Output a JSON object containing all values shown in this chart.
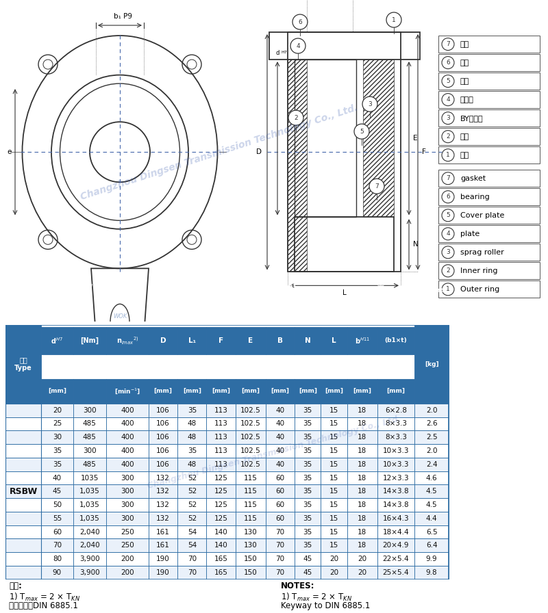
{
  "header_bg": "#2E6DA4",
  "header_text_color": "#FFFFFF",
  "row_bg_even": "#EAF1FA",
  "row_bg_odd": "#FFFFFF",
  "border_color": "#2E6DA4",
  "rows": [
    [
      "20",
      "300",
      "400",
      "106",
      "35",
      "113",
      "102.5",
      "40",
      "35",
      "15",
      "18",
      "6×2.8",
      "2.0"
    ],
    [
      "25",
      "485",
      "400",
      "106",
      "48",
      "113",
      "102.5",
      "40",
      "35",
      "15",
      "18",
      "8×3.3",
      "2.6"
    ],
    [
      "30",
      "485",
      "400",
      "106",
      "48",
      "113",
      "102.5",
      "40",
      "35",
      "15",
      "18",
      "8×3.3",
      "2.5"
    ],
    [
      "35",
      "300",
      "400",
      "106",
      "35",
      "113",
      "102.5",
      "40",
      "35",
      "15",
      "18",
      "10×3.3",
      "2.0"
    ],
    [
      "35",
      "485",
      "400",
      "106",
      "48",
      "113",
      "102.5",
      "40",
      "35",
      "15",
      "18",
      "10×3.3",
      "2.4"
    ],
    [
      "40",
      "1035",
      "300",
      "132",
      "52",
      "125",
      "115",
      "60",
      "35",
      "15",
      "18",
      "12×3.3",
      "4.6"
    ],
    [
      "45",
      "1,035",
      "300",
      "132",
      "52",
      "125",
      "115",
      "60",
      "35",
      "15",
      "18",
      "14×3.8",
      "4.5"
    ],
    [
      "50",
      "1,035",
      "300",
      "132",
      "52",
      "125",
      "115",
      "60",
      "35",
      "15",
      "18",
      "14×3.8",
      "4.5"
    ],
    [
      "55",
      "1,035",
      "300",
      "132",
      "52",
      "125",
      "115",
      "60",
      "35",
      "15",
      "18",
      "16×4.3",
      "4.4"
    ],
    [
      "60",
      "2,040",
      "250",
      "161",
      "54",
      "140",
      "130",
      "70",
      "35",
      "15",
      "18",
      "18×4.4",
      "6.5"
    ],
    [
      "70",
      "2,040",
      "250",
      "161",
      "54",
      "140",
      "130",
      "70",
      "35",
      "15",
      "18",
      "20×4.9",
      "6.4"
    ],
    [
      "80",
      "3,900",
      "200",
      "190",
      "70",
      "165",
      "150",
      "70",
      "45",
      "20",
      "20",
      "22×5.4",
      "9.9"
    ],
    [
      "90",
      "3,900",
      "200",
      "190",
      "70",
      "165",
      "150",
      "70",
      "45",
      "20",
      "20",
      "25×5.4",
      "9.8"
    ]
  ],
  "type_label": "RSBW",
  "drawing_bg": "#FFFFFF",
  "line_color": "#333333",
  "center_line_color": "#4466AA",
  "watermark_color": "#3355AA"
}
